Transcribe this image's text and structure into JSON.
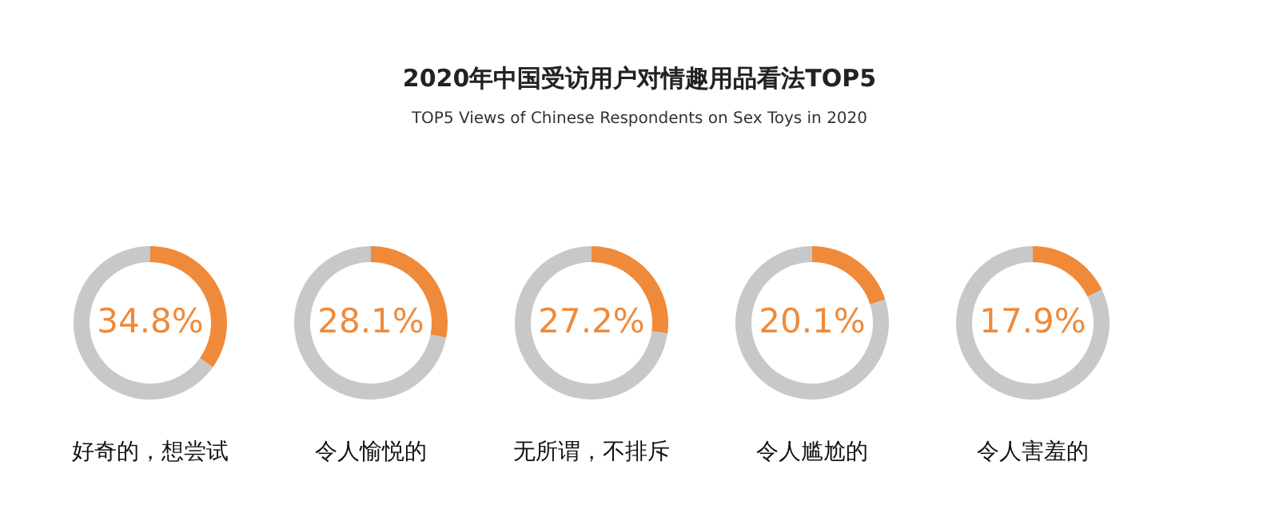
{
  "chart_data": [
    {
      "type": "other",
      "title": "2020年中国受访用户对情趣用品看法TOP5",
      "subtitle": "TOP5 Views of Chinese Respondents on Sex Toys in 2020"
    },
    {
      "type": "donut",
      "title": "好奇的，想尝试",
      "categories": [
        null,
        null
      ],
      "values": [
        34.8,
        65.2
      ],
      "colors": [
        "#ef8a3a",
        "#c8c8c8"
      ],
      "value_labels": [
        "34.8%",
        null
      ]
    },
    {
      "type": "donut",
      "title": "令人愉悦的",
      "categories": [
        null,
        null
      ],
      "values": [
        28.1,
        71.9
      ],
      "colors": [
        "#ef8a3a",
        "#c8c8c8"
      ],
      "value_labels": [
        "28.1%",
        null
      ]
    },
    {
      "type": "donut",
      "title": "无所谓，不排斥",
      "categories": [
        null,
        null
      ],
      "values": [
        27.2,
        72.8
      ],
      "colors": [
        "#ef8a3a",
        "#c8c8c8"
      ],
      "value_labels": [
        "27.2%",
        null
      ]
    },
    {
      "type": "donut",
      "title": "令人尴尬的",
      "categories": [
        null,
        null
      ],
      "values": [
        20.1,
        79.9
      ],
      "colors": [
        "#ef8a3a",
        "#c8c8c8"
      ],
      "value_labels": [
        "20.1%",
        null
      ]
    },
    {
      "type": "donut",
      "title": "令人害羞的",
      "categories": [
        null,
        null
      ],
      "values": [
        17.9,
        82.1
      ],
      "colors": [
        "#ef8a3a",
        "#c8c8c8"
      ],
      "value_labels": [
        "17.9%",
        null
      ]
    }
  ]
}
